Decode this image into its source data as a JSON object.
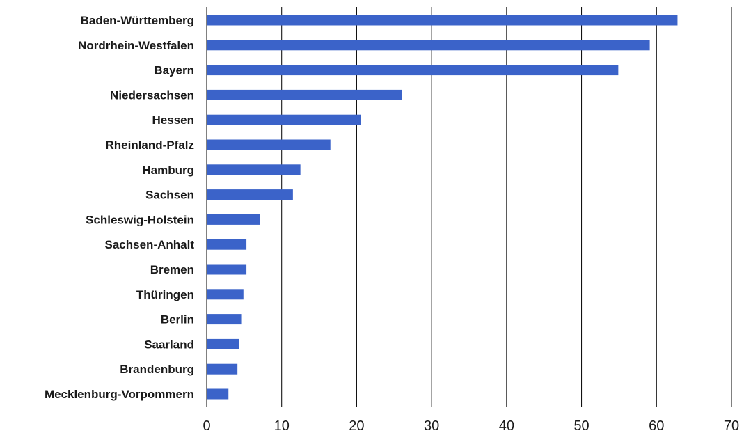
{
  "chart_data": {
    "type": "bar",
    "orientation": "horizontal",
    "categories": [
      "Baden-Württemberg",
      "Nordrhein-Westfalen",
      "Bayern",
      "Niedersachsen",
      "Hessen",
      "Rheinland-Pfalz",
      "Hamburg",
      "Sachsen",
      "Schleswig-Holstein",
      "Sachsen-Anhalt",
      "Bremen",
      "Thüringen",
      "Berlin",
      "Saarland",
      "Brandenburg",
      "Mecklenburg-Vorpommern"
    ],
    "values": [
      62.8,
      59.1,
      54.9,
      26.0,
      20.6,
      16.5,
      12.5,
      11.5,
      7.1,
      5.3,
      5.3,
      4.9,
      4.6,
      4.3,
      4.1,
      2.9
    ],
    "xlim": [
      0,
      70
    ],
    "xticks": [
      "0",
      "10",
      "20",
      "30",
      "40",
      "50",
      "60",
      "70"
    ],
    "title": "",
    "xlabel": "",
    "ylabel": "",
    "grid": "vertical",
    "legend": "none",
    "colors": {
      "bar": "#3b63c9",
      "grid": "#000000",
      "text": "#1a1a1a"
    }
  }
}
